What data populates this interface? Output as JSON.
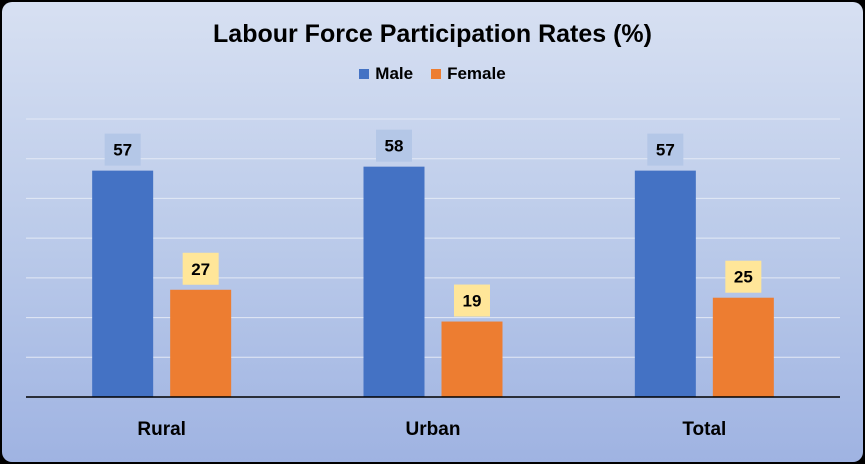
{
  "chart_data": {
    "type": "bar",
    "title": "Labour Force Participation Rates (%)",
    "categories": [
      "Rural",
      "Urban",
      "Total"
    ],
    "series": [
      {
        "name": "Male",
        "values": [
          57,
          58,
          57
        ],
        "color": "#4472c4",
        "label_bg": "#b4c7e7"
      },
      {
        "name": "Female",
        "values": [
          27,
          19,
          25
        ],
        "color": "#ed7d31",
        "label_bg": "#ffe699"
      }
    ],
    "ylim": [
      0,
      70
    ],
    "legend_position": "top",
    "grid": true,
    "data_labels": true
  }
}
